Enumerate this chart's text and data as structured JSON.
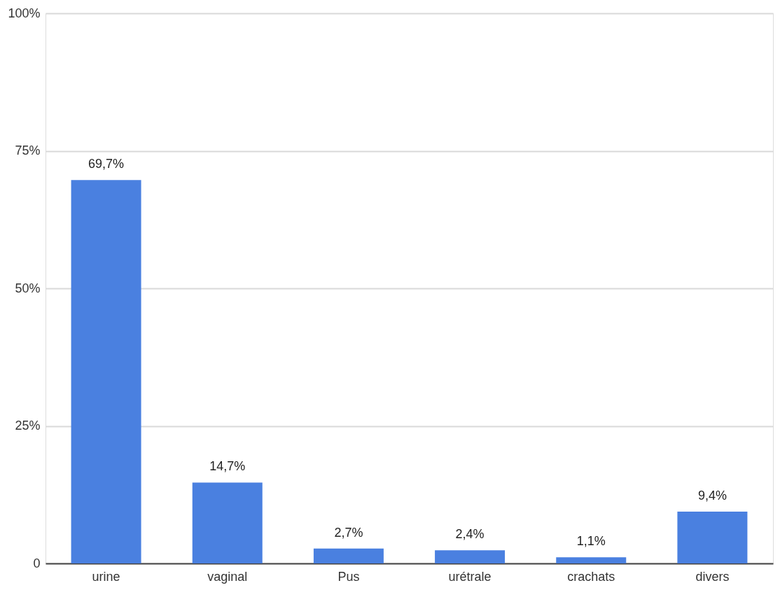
{
  "chart_data": {
    "type": "bar",
    "categories": [
      "urine",
      "vaginal",
      "Pus",
      "urétrale",
      "crachats",
      "divers"
    ],
    "values": [
      69.7,
      14.7,
      2.7,
      2.4,
      1.1,
      9.4
    ],
    "value_labels": [
      "69,7%",
      "14,7%",
      "2,7%",
      "2,4%",
      "1,1%",
      "9,4%"
    ],
    "color": "#4a80e0",
    "ylim": [
      0,
      100
    ],
    "yticks": [
      {
        "value": 0,
        "label": "0"
      },
      {
        "value": 25,
        "label": "25%"
      },
      {
        "value": 50,
        "label": "50%"
      },
      {
        "value": 75,
        "label": "75%"
      },
      {
        "value": 100,
        "label": "100%"
      }
    ],
    "grid": "y"
  }
}
